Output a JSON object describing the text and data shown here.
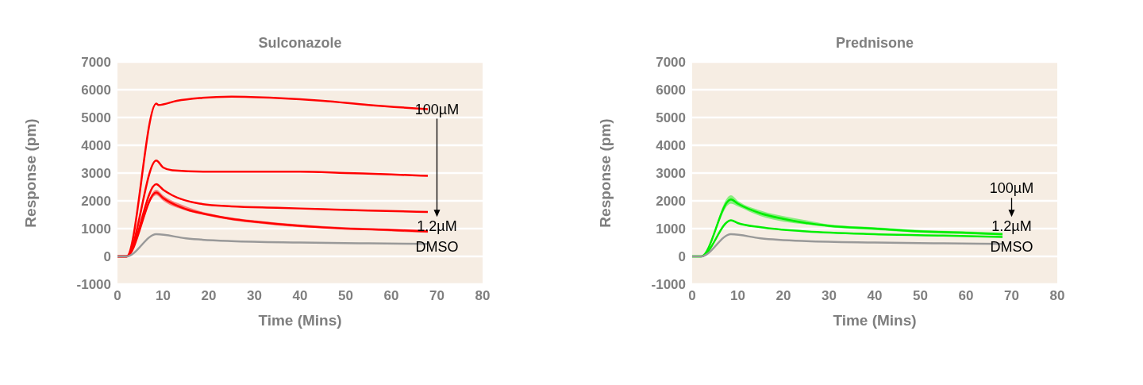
{
  "chart_data": [
    {
      "type": "line",
      "title": "Sulconazole",
      "xlabel": "Time (Mins)",
      "ylabel": "Response (pm)",
      "xlim": [
        0,
        80
      ],
      "xticks": [
        0,
        10,
        20,
        30,
        40,
        50,
        60,
        70,
        80
      ],
      "ylim": [
        -1000,
        7000
      ],
      "yticks": [
        -1000,
        0,
        1000,
        2000,
        3000,
        4000,
        5000,
        6000,
        7000
      ],
      "grid": "y",
      "marker": "none",
      "line_style": "solid",
      "series": [
        {
          "color": "#ff0000",
          "x": [
            0,
            2,
            8.5,
            9,
            13,
            18,
            25,
            35,
            45,
            55,
            68
          ],
          "values": [
            0,
            0,
            5500,
            5450,
            5600,
            5700,
            5750,
            5700,
            5600,
            5450,
            5300
          ]
        },
        {
          "color": "#ff0000",
          "x": [
            0,
            2,
            8.5,
            10,
            12,
            20,
            30,
            40,
            50,
            60,
            68
          ],
          "values": [
            0,
            0,
            3450,
            3200,
            3100,
            3050,
            3050,
            3050,
            3000,
            2950,
            2900
          ]
        },
        {
          "color": "#ff0000",
          "x": [
            0,
            2,
            8.5,
            10,
            12,
            18,
            25,
            35,
            45,
            55,
            68
          ],
          "values": [
            0,
            0,
            2600,
            2400,
            2200,
            1900,
            1800,
            1750,
            1700,
            1650,
            1600
          ]
        },
        {
          "color": "#ff0000",
          "x": [
            0,
            2,
            8.5,
            10,
            15,
            20,
            25,
            30,
            40,
            50,
            60,
            68
          ],
          "values": [
            0,
            0,
            2300,
            2100,
            1700,
            1500,
            1350,
            1250,
            1100,
            1000,
            950,
            900
          ],
          "lower": [
            0,
            0,
            2200,
            2000,
            1650,
            1450,
            1300,
            1200,
            1050,
            1000,
            900,
            850
          ],
          "upper": [
            0,
            0,
            2400,
            2200,
            1800,
            1550,
            1400,
            1300,
            1150,
            1050,
            1000,
            950
          ]
        },
        {
          "color": "#999999",
          "x": [
            0,
            2,
            8.5,
            15,
            25,
            40,
            55,
            68
          ],
          "values": [
            0,
            0,
            800,
            650,
            550,
            500,
            470,
            450
          ]
        }
      ],
      "annotations": [
        "100µM",
        "1.2µM",
        "DMSO"
      ]
    },
    {
      "type": "line",
      "title": "Prednisone",
      "xlabel": "Time (Mins)",
      "ylabel": "Response (pm)",
      "xlim": [
        0,
        80
      ],
      "xticks": [
        0,
        10,
        20,
        30,
        40,
        50,
        60,
        70,
        80
      ],
      "ylim": [
        -1000,
        7000
      ],
      "yticks": [
        -1000,
        0,
        1000,
        2000,
        3000,
        4000,
        5000,
        6000,
        7000
      ],
      "grid": "y",
      "marker": "none",
      "line_style": "solid",
      "series": [
        {
          "color": "#00ee00",
          "x": [
            0,
            2,
            8.5,
            10,
            15,
            20,
            25,
            30,
            40,
            50,
            60,
            68
          ],
          "values": [
            0,
            0,
            2050,
            1900,
            1550,
            1350,
            1200,
            1100,
            1000,
            900,
            850,
            800
          ],
          "lower": [
            0,
            0,
            1900,
            1800,
            1450,
            1250,
            1150,
            1050,
            950,
            850,
            800,
            750
          ],
          "upper": [
            0,
            0,
            2200,
            2000,
            1650,
            1450,
            1300,
            1150,
            1050,
            950,
            900,
            850
          ]
        },
        {
          "color": "#00ee00",
          "x": [
            0,
            2,
            8.5,
            10,
            15,
            25,
            40,
            55,
            68
          ],
          "values": [
            0,
            0,
            1300,
            1200,
            1050,
            900,
            800,
            750,
            700
          ]
        },
        {
          "color": "#999999",
          "x": [
            0,
            2,
            8.5,
            15,
            25,
            40,
            55,
            68
          ],
          "values": [
            0,
            0,
            800,
            650,
            550,
            500,
            470,
            450
          ]
        }
      ],
      "annotations": [
        "100µM",
        "1.2µM",
        "DMSO"
      ]
    }
  ]
}
